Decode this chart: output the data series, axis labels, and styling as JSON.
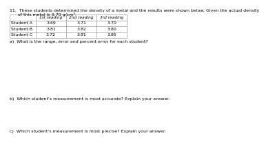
{
  "title_line1": "11.  These students determined the density of a metal and the results were shown below. Given the actual density",
  "title_line2": "      of this metal is 3.70 g/cm³.",
  "col_headers": [
    "1st reading",
    "2nd reading",
    "3rd reading"
  ],
  "col_headers_sup": [
    "st",
    "nd",
    "rd"
  ],
  "row_labels": [
    "Student A",
    "Student B",
    "Student C"
  ],
  "table_data": [
    [
      "3.69",
      "3.71",
      "3.70"
    ],
    [
      "3.81",
      "3.82",
      "3.80"
    ],
    [
      "3.72",
      "3.81",
      "3.85"
    ]
  ],
  "question_a": "a)  What is the range, error and percent error for each student?",
  "question_b": "b)  Which student’s measurement is most accurate? Explain your answer.",
  "question_c": "c)  Which student’s measurement is most precise? Explain your answer.",
  "bg_color": "#ffffff",
  "text_color": "#000000",
  "table_line_color": "#999999",
  "font_size": 4.5,
  "title_font_size": 4.5
}
